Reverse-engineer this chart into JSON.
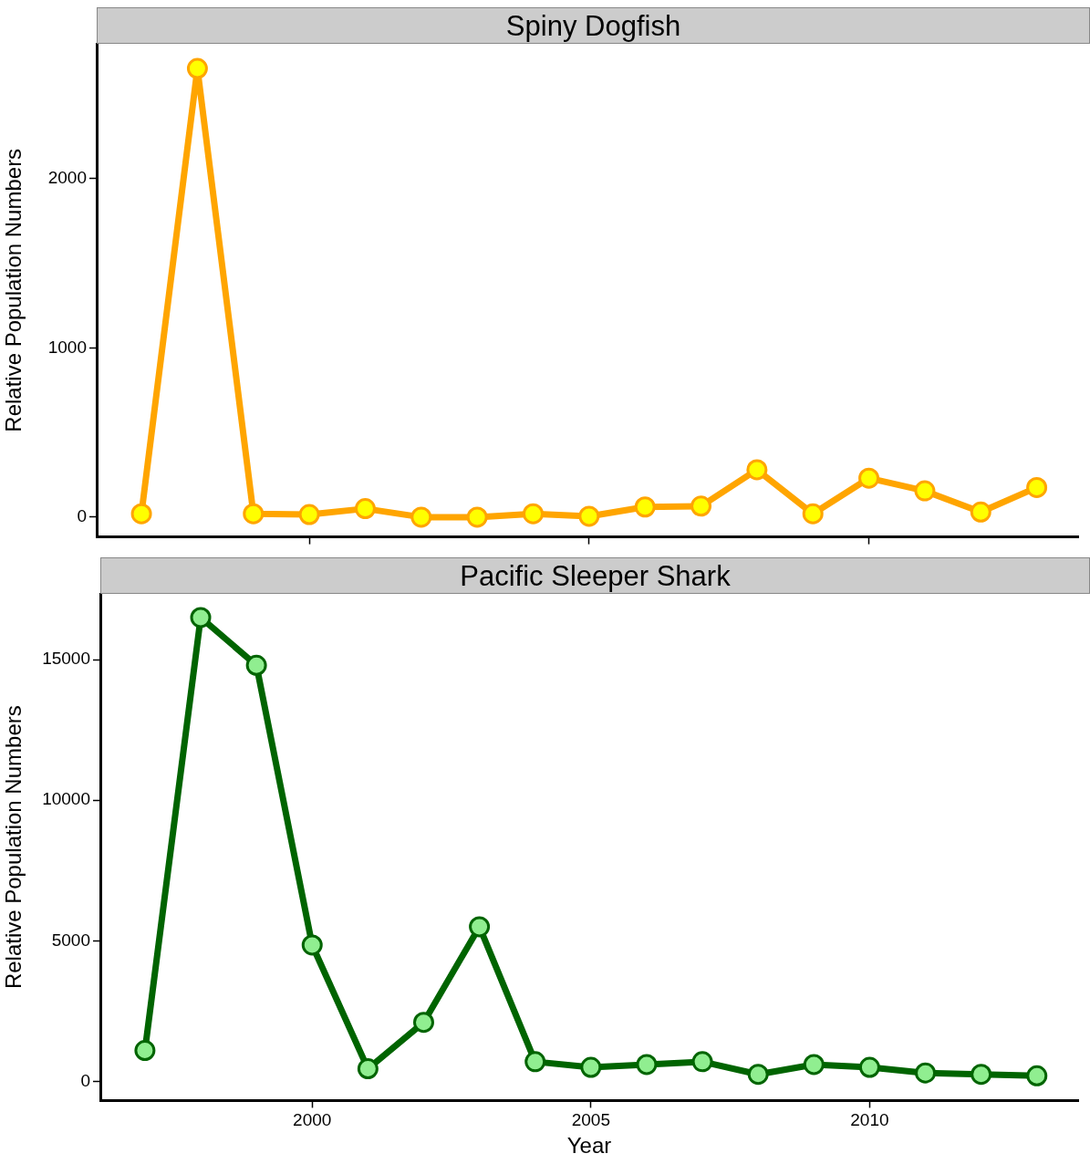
{
  "chart_data": [
    {
      "type": "line",
      "title": "Spiny Dogfish",
      "ylabel": "Relative Population Numbers",
      "x": [
        1997,
        1998,
        1999,
        2000,
        2001,
        2002,
        2003,
        2004,
        2005,
        2006,
        2007,
        2008,
        2009,
        2010,
        2011,
        2012,
        2013
      ],
      "xlim": [
        1996.2,
        2013.74
      ],
      "xticks": [
        2000,
        2005,
        2010
      ],
      "ylim": [
        -117,
        2796
      ],
      "yticks": [
        0,
        1000,
        2000
      ],
      "tick_labels": "y",
      "grid": false,
      "legend": false,
      "marker": "circle",
      "line_style": "solid",
      "series": [
        {
          "color": "#ffa500",
          "colors": [
            "#ffff00",
            "#ffff00",
            "#ffff00",
            "#ffff00",
            "#ffff00",
            "#ffff00",
            "#ffff00",
            "#ffff00",
            "#ffff00",
            "#ffff00",
            "#ffff00",
            "#ffff00",
            "#ffff00",
            "#ffff00",
            "#ffff00",
            "#ffff00",
            "#ffff00"
          ],
          "values": [
            20,
            2650,
            20,
            15,
            50,
            0,
            0,
            20,
            5,
            60,
            65,
            280,
            20,
            230,
            155,
            30,
            175
          ]
        }
      ]
    },
    {
      "type": "line",
      "title": "Pacific Sleeper Shark",
      "xlabel": "Year",
      "ylabel": "Relative Population Numbers",
      "x": [
        1997,
        1998,
        1999,
        2000,
        2001,
        2002,
        2003,
        2004,
        2005,
        2006,
        2007,
        2008,
        2009,
        2010,
        2011,
        2012,
        2013
      ],
      "xlim": [
        1996.2,
        2013.74
      ],
      "xticks": [
        2000,
        2005,
        2010
      ],
      "ylim": [
        -680,
        17340
      ],
      "yticks": [
        0,
        5000,
        10000,
        15000
      ],
      "grid": false,
      "legend": false,
      "marker": "circle",
      "line_style": "solid",
      "series": [
        {
          "color": "#006400",
          "colors": [
            "#90ee90",
            "#90ee90",
            "#90ee90",
            "#90ee90",
            "#90ee90",
            "#90ee90",
            "#90ee90",
            "#90ee90",
            "#90ee90",
            "#90ee90",
            "#90ee90",
            "#90ee90",
            "#90ee90",
            "#90ee90",
            "#90ee90",
            "#90ee90",
            "#90ee90"
          ],
          "values": [
            1100,
            16500,
            14800,
            4850,
            450,
            2100,
            5500,
            700,
            500,
            600,
            700,
            250,
            600,
            500,
            300,
            250,
            200
          ]
        }
      ]
    }
  ]
}
